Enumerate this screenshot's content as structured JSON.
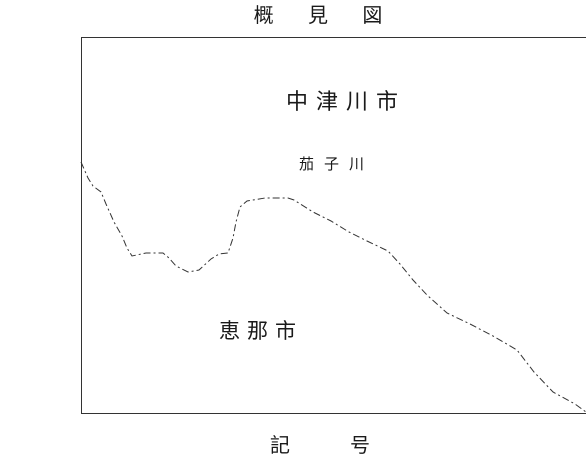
{
  "map": {
    "title": "概 見 図",
    "labels": {
      "city_north": "中津川市",
      "river": "茄子川",
      "city_south": "恵那市"
    },
    "legend": {
      "heading_left": "記",
      "heading_right": "号"
    },
    "colors": {
      "boundary": "#333333",
      "frame": "#333333",
      "text": "#1a1a1a"
    }
  }
}
